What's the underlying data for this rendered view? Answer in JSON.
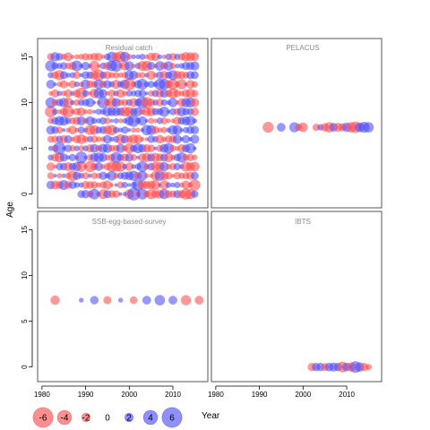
{
  "chart_data": {
    "type": "scatter",
    "subtype": "bubble residual plot",
    "ylabel": "Age",
    "xlabel": "Year",
    "xlim": [
      1979,
      2018
    ],
    "ylim": [
      -1.5,
      17
    ],
    "x_ticks": [
      1980,
      1990,
      2000,
      2010
    ],
    "x_tick_labels": [
      "1980",
      "1990",
      "2000",
      "2010"
    ],
    "y_ticks": [
      0,
      5,
      10,
      15
    ],
    "y_tick_labels": [
      "0",
      "5",
      "10",
      "15"
    ],
    "positive_color": "#4444ff",
    "negative_color": "#ff4444",
    "legend": {
      "placement": "bottom-left",
      "values": [
        -6,
        -4,
        -2,
        0,
        2,
        4,
        6
      ],
      "labels": [
        "-6",
        "-4",
        "-2",
        "0",
        "2",
        "4",
        "6"
      ]
    },
    "panels": [
      {
        "name": "Residual catch",
        "grid": {
          "years": [
            1982,
            2015
          ],
          "ages": [
            0,
            15
          ]
        },
        "points": []
      },
      {
        "name": "PELACUS",
        "points": [
          {
            "x": 1992,
            "y": 7.3,
            "v": -1.8
          },
          {
            "x": 1995,
            "y": 7.3,
            "v": 1.0
          },
          {
            "x": 1998,
            "y": 7.3,
            "v": 1.5
          },
          {
            "x": 1999,
            "y": 7.3,
            "v": -0.6
          },
          {
            "x": 2000,
            "y": 7.3,
            "v": -1.3
          },
          {
            "x": 2003,
            "y": 7.3,
            "v": -0.6
          },
          {
            "x": 2004,
            "y": 7.3,
            "v": 0.4
          },
          {
            "x": 2005,
            "y": 7.3,
            "v": -0.9
          },
          {
            "x": 2006,
            "y": 7.3,
            "v": -1.6
          },
          {
            "x": 2007,
            "y": 7.3,
            "v": 1.0
          },
          {
            "x": 2008,
            "y": 7.3,
            "v": -1.1
          },
          {
            "x": 2009,
            "y": 7.3,
            "v": -0.8
          },
          {
            "x": 2010,
            "y": 7.3,
            "v": 1.2
          },
          {
            "x": 2011,
            "y": 7.3,
            "v": -1.6
          },
          {
            "x": 2012,
            "y": 7.3,
            "v": -2.0
          },
          {
            "x": 2013,
            "y": 7.3,
            "v": 1.3
          },
          {
            "x": 2014,
            "y": 7.3,
            "v": 1.8
          },
          {
            "x": 2015,
            "y": 7.3,
            "v": 1.6
          }
        ]
      },
      {
        "name": "SSB-egg-based-survey",
        "points": [
          {
            "x": 1983,
            "y": 7.3,
            "v": -1.2
          },
          {
            "x": 1989,
            "y": 7.3,
            "v": 0.15
          },
          {
            "x": 1992,
            "y": 7.3,
            "v": 0.9
          },
          {
            "x": 1995,
            "y": 7.3,
            "v": -0.8
          },
          {
            "x": 1998,
            "y": 7.3,
            "v": 0.15
          },
          {
            "x": 2001,
            "y": 7.3,
            "v": -0.7
          },
          {
            "x": 2004,
            "y": 7.3,
            "v": 1.0
          },
          {
            "x": 2007,
            "y": 7.3,
            "v": 1.6
          },
          {
            "x": 2010,
            "y": 7.3,
            "v": 1.0
          },
          {
            "x": 2013,
            "y": 7.3,
            "v": -1.5
          },
          {
            "x": 2016,
            "y": 7.3,
            "v": -1.0
          }
        ]
      },
      {
        "name": "IBTS",
        "points": [
          {
            "x": 2002,
            "y": 0,
            "v": -0.9
          },
          {
            "x": 2003,
            "y": 0,
            "v": 0.9
          },
          {
            "x": 2004,
            "y": 0,
            "v": 0.9
          },
          {
            "x": 2005,
            "y": 0,
            "v": -0.8
          },
          {
            "x": 2006,
            "y": 0,
            "v": 1.0
          },
          {
            "x": 2007,
            "y": 0,
            "v": 1.1
          },
          {
            "x": 2008,
            "y": 0,
            "v": 0.9
          },
          {
            "x": 2009,
            "y": 0,
            "v": -1.7
          },
          {
            "x": 2010,
            "y": 0,
            "v": 1.0
          },
          {
            "x": 2011,
            "y": 0,
            "v": -1.2
          },
          {
            "x": 2012,
            "y": 0,
            "v": 2.1
          },
          {
            "x": 2013,
            "y": 0,
            "v": 1.2
          },
          {
            "x": 2014,
            "y": 0,
            "v": -0.9
          },
          {
            "x": 2015,
            "y": 0,
            "v": -0.4
          }
        ]
      }
    ]
  }
}
